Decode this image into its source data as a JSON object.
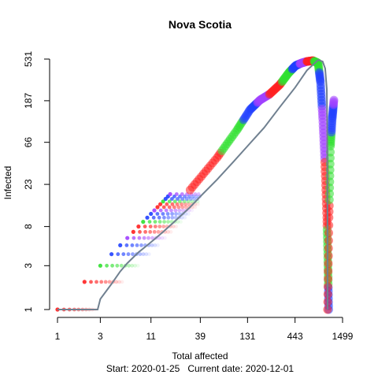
{
  "chart_data": {
    "type": "scatter",
    "title": "Nova Scotia",
    "xlabel": "Total affected",
    "ylabel": "Infected",
    "footer": {
      "start_label": "Start:",
      "start_value": "2020-01-25",
      "current_label": "Current date:",
      "current_value": "2020-12-01"
    },
    "x_scale": "log",
    "y_scale": "log",
    "xlim": [
      1,
      1499
    ],
    "ylim": [
      1,
      531
    ],
    "x_ticks": [
      1,
      3,
      11,
      39,
      131,
      443,
      1499
    ],
    "y_ticks": [
      1,
      3,
      8,
      23,
      66,
      187,
      531
    ],
    "grid": false,
    "legend": "none",
    "colors": {
      "line": "#708090",
      "cycle": [
        "#ff2020",
        "#30e030",
        "#2040ff",
        "#a040ff"
      ]
    },
    "series": [
      {
        "style": "line",
        "x": [
          1,
          2,
          2.8,
          3,
          4,
          5,
          6,
          8,
          10,
          12,
          15,
          20,
          30,
          39,
          60,
          90,
          131,
          200,
          300,
          443,
          600,
          800,
          900,
          960,
          1000,
          1010,
          1015,
          1018,
          1020,
          1020
        ],
        "y": [
          1,
          1,
          1,
          1.3,
          1.9,
          2.6,
          3.2,
          4.2,
          5,
          5.8,
          7,
          9,
          13,
          17,
          26,
          40,
          60,
          95,
          160,
          260,
          400,
          520,
          500,
          420,
          250,
          100,
          40,
          10,
          3,
          1
        ]
      },
      {
        "style": "points",
        "x": [
          1,
          2,
          3,
          4,
          5,
          6,
          7,
          8,
          9,
          10,
          11,
          12,
          13,
          14,
          15,
          16,
          17,
          18
        ],
        "y": [
          1,
          2,
          3,
          4,
          5,
          6,
          7,
          8,
          9,
          10,
          11,
          12,
          13,
          14,
          15,
          16,
          17,
          18
        ]
      },
      {
        "style": "ribbon",
        "x": [
          30,
          60,
          100,
          140,
          180,
          230,
          300,
          380,
          450,
          520,
          600,
          700,
          800,
          850,
          900,
          950,
          1000,
          1030,
          1050
        ],
        "y": [
          20,
          45,
          90,
          150,
          190,
          220,
          280,
          380,
          450,
          480,
          500,
          510,
          480,
          300,
          120,
          40,
          10,
          3,
          1
        ]
      },
      {
        "style": "ribbon",
        "x": [
          1020,
          1060,
          1100,
          1150,
          1200
        ],
        "y": [
          1,
          10,
          60,
          120,
          190
        ]
      }
    ]
  }
}
